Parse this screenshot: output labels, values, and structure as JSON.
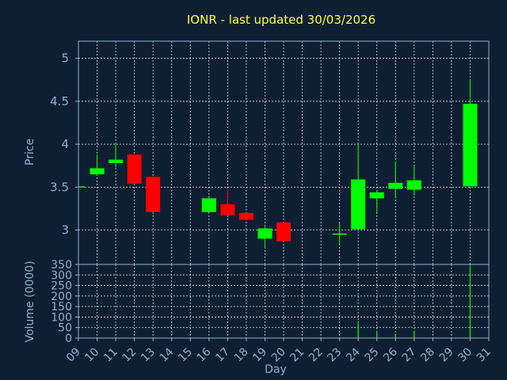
{
  "title": "IONR - last updated 30/03/2026",
  "colors": {
    "background": "#0f1f33",
    "up": "#00ff00",
    "down": "#ff0000",
    "title": "#ffff33",
    "axis_text": "#8fb0cf"
  },
  "chart_data": [
    {
      "type": "candlestick",
      "ylabel": "Price",
      "ylim": [
        2.6,
        5.2
      ],
      "yticks": [
        "5",
        "4.5",
        "4",
        "3.5",
        "3"
      ],
      "grid": true,
      "candles": [
        {
          "day": 9,
          "open": 3.5,
          "high": 3.51,
          "low": 3.49,
          "close": 3.51
        },
        {
          "day": 10,
          "open": 3.65,
          "high": 3.88,
          "low": 3.65,
          "close": 3.72
        },
        {
          "day": 11,
          "open": 3.78,
          "high": 4.0,
          "low": 3.73,
          "close": 3.82
        },
        {
          "day": 12,
          "open": 3.88,
          "high": 3.88,
          "low": 3.54,
          "close": 3.54
        },
        {
          "day": 13,
          "open": 3.62,
          "high": 3.62,
          "low": 3.21,
          "close": 3.21
        },
        {
          "day": 16,
          "open": 3.21,
          "high": 3.4,
          "low": 3.21,
          "close": 3.37
        },
        {
          "day": 17,
          "open": 3.3,
          "high": 3.47,
          "low": 3.17,
          "close": 3.17
        },
        {
          "day": 18,
          "open": 3.2,
          "high": 3.2,
          "low": 3.12,
          "close": 3.12
        },
        {
          "day": 19,
          "open": 2.9,
          "high": 3.06,
          "low": 2.79,
          "close": 3.02
        },
        {
          "day": 20,
          "open": 3.09,
          "high": 3.09,
          "low": 2.87,
          "close": 2.87
        },
        {
          "day": 23,
          "open": 2.95,
          "high": 3.08,
          "low": 2.83,
          "close": 2.96
        },
        {
          "day": 24,
          "open": 3.01,
          "high": 4.02,
          "low": 3.01,
          "close": 3.59
        },
        {
          "day": 25,
          "open": 3.37,
          "high": 3.47,
          "low": 3.21,
          "close": 3.44
        },
        {
          "day": 26,
          "open": 3.48,
          "high": 3.8,
          "low": 3.37,
          "close": 3.55
        },
        {
          "day": 27,
          "open": 3.47,
          "high": 3.76,
          "low": 3.4,
          "close": 3.58
        },
        {
          "day": 30,
          "open": 3.51,
          "high": 4.75,
          "low": 3.51,
          "close": 4.47
        }
      ]
    },
    {
      "type": "bar",
      "ylabel": "Volume (0000)",
      "ylim": [
        0,
        350
      ],
      "yticks": [
        "350",
        "300",
        "250",
        "200",
        "150",
        "100",
        "50",
        "0"
      ],
      "xlabel": "Day",
      "xlim": [
        9,
        31
      ],
      "xticks": [
        "09",
        "10",
        "11",
        "12",
        "13",
        "14",
        "15",
        "16",
        "17",
        "18",
        "19",
        "20",
        "21",
        "22",
        "23",
        "24",
        "25",
        "26",
        "27",
        "28",
        "29",
        "30",
        "31"
      ],
      "volumes": [
        {
          "day": 9,
          "value": 1
        },
        {
          "day": 10,
          "value": 2
        },
        {
          "day": 11,
          "value": 1
        },
        {
          "day": 12,
          "value": 2
        },
        {
          "day": 13,
          "value": 3
        },
        {
          "day": 16,
          "value": 2
        },
        {
          "day": 17,
          "value": 2
        },
        {
          "day": 18,
          "value": 1
        },
        {
          "day": 19,
          "value": 4
        },
        {
          "day": 20,
          "value": 3
        },
        {
          "day": 23,
          "value": 2
        },
        {
          "day": 24,
          "value": 80
        },
        {
          "day": 25,
          "value": 30
        },
        {
          "day": 26,
          "value": 20
        },
        {
          "day": 27,
          "value": 35
        },
        {
          "day": 30,
          "value": 340
        }
      ]
    }
  ]
}
